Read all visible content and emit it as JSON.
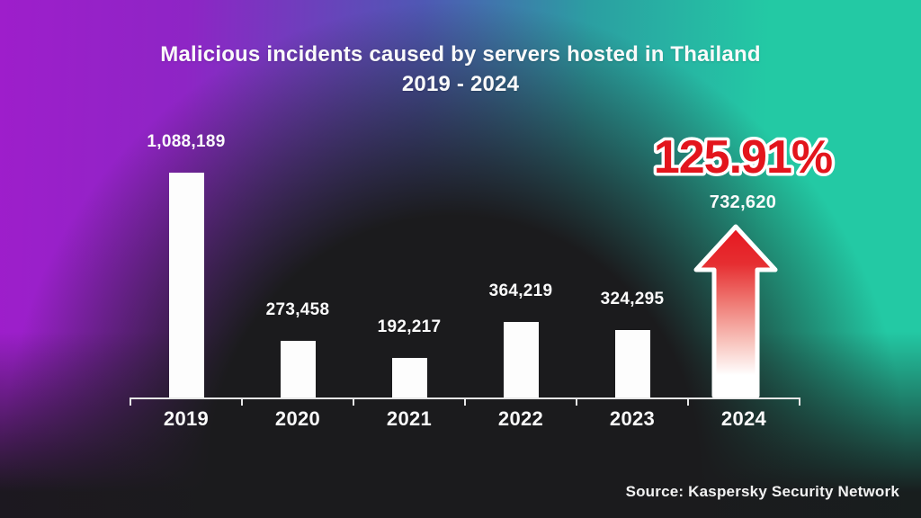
{
  "title": {
    "line1": "Malicious incidents caused by servers hosted in Thailand",
    "line2": "2019 - 2024"
  },
  "source": "Source: Kaspersky Security Network",
  "highlight": {
    "year": "2024",
    "percent": "125.91%",
    "value": "732,620",
    "percent_color": "#e3151c",
    "arrow_color_top": "#e6161f",
    "arrow_color_bottom": "#ffffff"
  },
  "chart_data": {
    "type": "bar",
    "title": "Malicious incidents caused by servers hosted in Thailand 2019 - 2024",
    "categories": [
      "2019",
      "2020",
      "2021",
      "2022",
      "2023",
      "2024"
    ],
    "values": [
      1088189,
      273458,
      192217,
      364219,
      324295,
      732620
    ],
    "labels": [
      "1,088,189",
      "273,458",
      "192,217",
      "364,219",
      "324,295",
      "732,620"
    ],
    "highlight_year": "2024",
    "highlight_percent_change": "125.91%",
    "xlabel": "",
    "ylabel": "",
    "ylim": [
      0,
      1100000
    ],
    "grid": false,
    "legend": false,
    "bar_color": "#fdfdfd",
    "axis_color": "#e6e6e6",
    "annotation": "2024 drawn as red upward arrow marking a 125.91% increase"
  },
  "colors": {
    "background_left": "#9e1ecb",
    "background_right": "#23c9a4",
    "background_center": "#1b1b1d",
    "text": "#fafafa"
  }
}
